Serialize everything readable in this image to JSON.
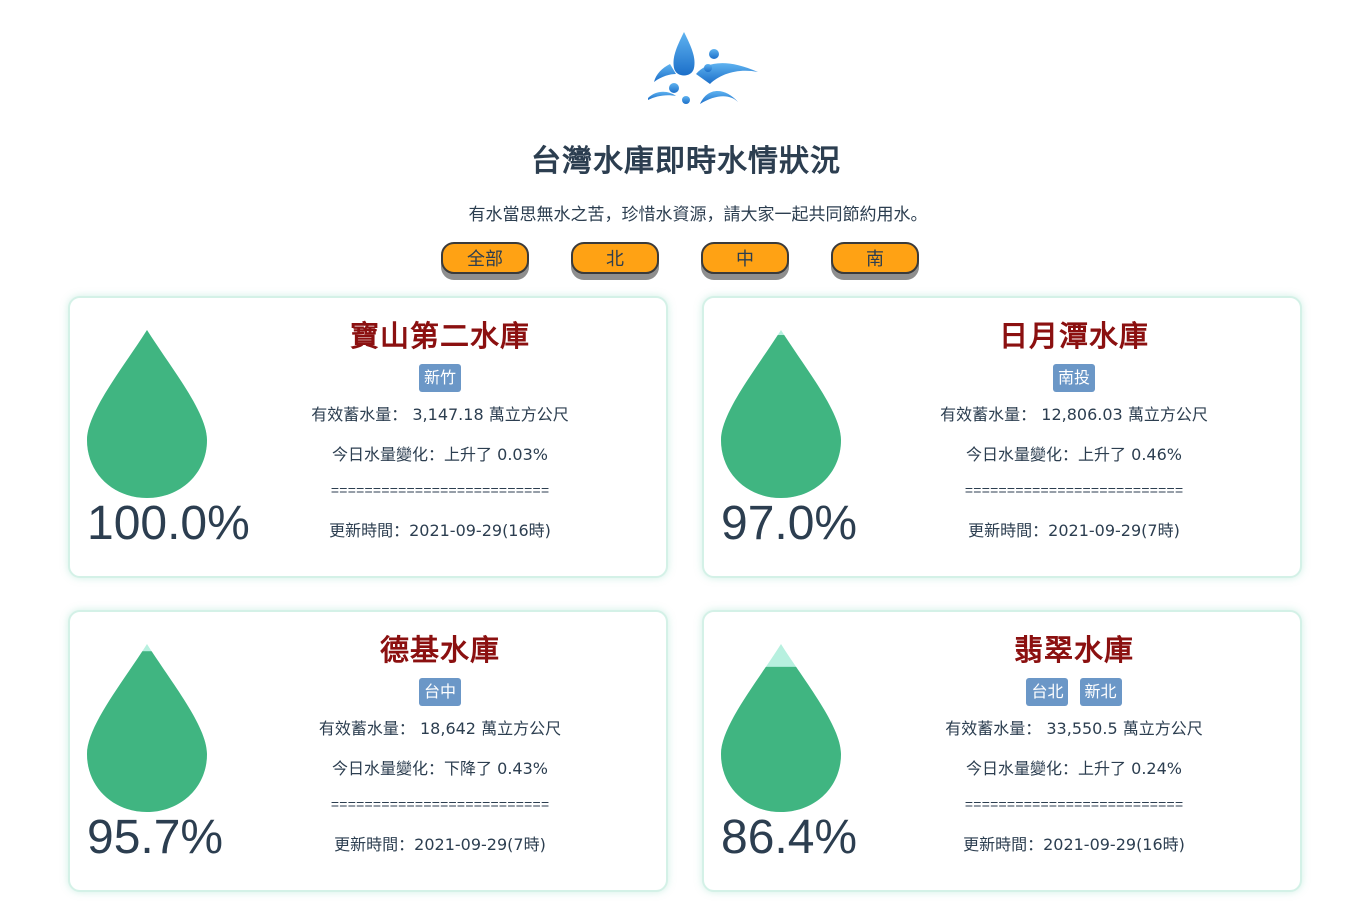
{
  "header": {
    "title": "台灣水庫即時水情狀況",
    "slogan": "有水當思無水之苦，珍惜水資源，請大家一起共同節約用水。"
  },
  "filters": [
    "全部",
    "北",
    "中",
    "南"
  ],
  "colors": {
    "drop_fill": "#40b581",
    "drop_empty": "#b7f0df",
    "name": "#8b1010",
    "tag": "#6b97c7",
    "button": "#ffa214"
  },
  "labels": {
    "storage": "有效蓄水量：",
    "change": "今日水量變化：",
    "unit": "萬立方公尺",
    "updated": "更新時間：",
    "separator": "=========================="
  },
  "reservoirs": [
    {
      "name": "寶山第二水庫",
      "tags": [
        "新竹"
      ],
      "level": 100.0,
      "percent_text": "100.0%",
      "storage": "3,147.18",
      "change": "上升了 0.03%",
      "updated": "2021-09-29(16時)"
    },
    {
      "name": "日月潭水庫",
      "tags": [
        "南投"
      ],
      "level": 97.0,
      "percent_text": "97.0%",
      "storage": "12,806.03",
      "change": "上升了 0.46%",
      "updated": "2021-09-29(7時)"
    },
    {
      "name": "德基水庫",
      "tags": [
        "台中"
      ],
      "level": 95.7,
      "percent_text": "95.7%",
      "storage": "18,642",
      "change": "下降了 0.43%",
      "updated": "2021-09-29(7時)"
    },
    {
      "name": "翡翠水庫",
      "tags": [
        "台北",
        "新北"
      ],
      "level": 86.4,
      "percent_text": "86.4%",
      "storage": "33,550.5",
      "change": "上升了 0.24%",
      "updated": "2021-09-29(16時)"
    }
  ]
}
